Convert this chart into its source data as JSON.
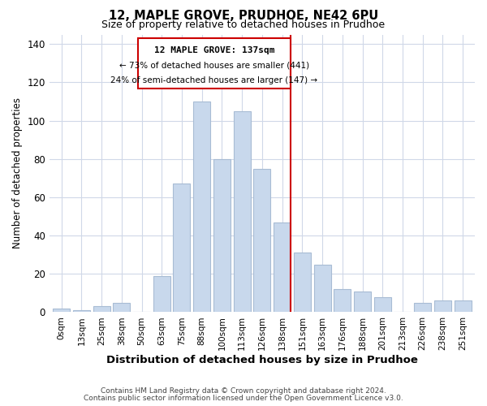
{
  "title": "12, MAPLE GROVE, PRUDHOE, NE42 6PU",
  "subtitle": "Size of property relative to detached houses in Prudhoe",
  "xlabel": "Distribution of detached houses by size in Prudhoe",
  "ylabel": "Number of detached properties",
  "bar_labels": [
    "0sqm",
    "13sqm",
    "25sqm",
    "38sqm",
    "50sqm",
    "63sqm",
    "75sqm",
    "88sqm",
    "100sqm",
    "113sqm",
    "126sqm",
    "138sqm",
    "151sqm",
    "163sqm",
    "176sqm",
    "188sqm",
    "201sqm",
    "213sqm",
    "226sqm",
    "238sqm",
    "251sqm"
  ],
  "bar_heights": [
    2,
    1,
    3,
    5,
    0,
    19,
    67,
    110,
    80,
    105,
    75,
    47,
    31,
    25,
    12,
    11,
    8,
    0,
    5,
    6,
    6
  ],
  "bar_color": "#c8d8ec",
  "bar_edge_color": "#a8bcd4",
  "vline_color": "#cc0000",
  "ylim": [
    0,
    145
  ],
  "yticks": [
    0,
    20,
    40,
    60,
    80,
    100,
    120,
    140
  ],
  "annotation_title": "12 MAPLE GROVE: 137sqm",
  "annotation_line1": "← 73% of detached houses are smaller (441)",
  "annotation_line2": "24% of semi-detached houses are larger (147) →",
  "footer1": "Contains HM Land Registry data © Crown copyright and database right 2024.",
  "footer2": "Contains public sector information licensed under the Open Government Licence v3.0.",
  "background_color": "#ffffff",
  "grid_color": "#d0d8e8"
}
